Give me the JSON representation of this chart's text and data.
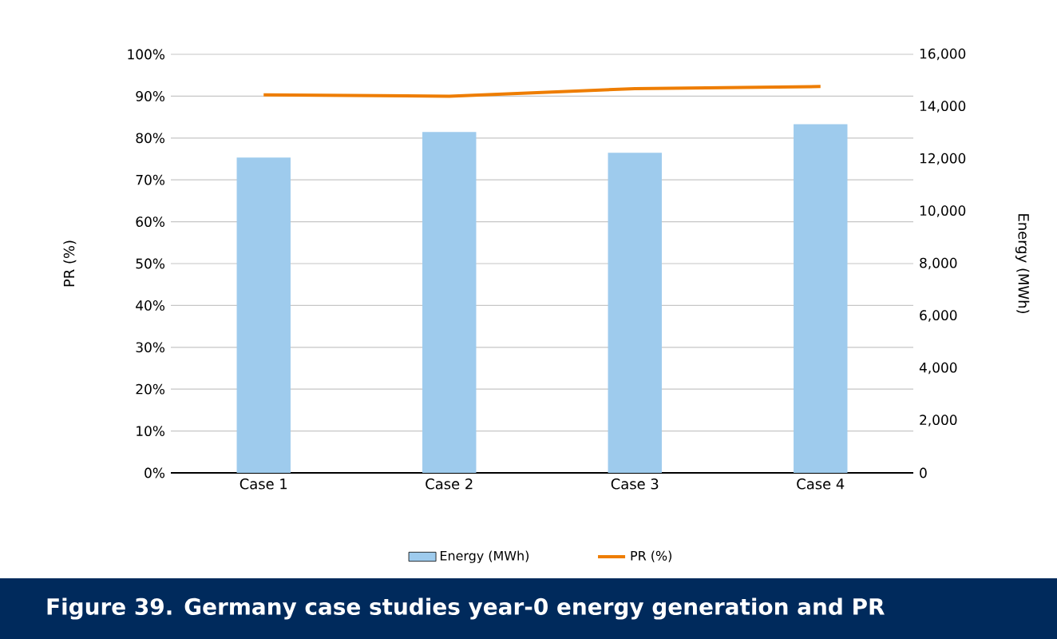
{
  "chart_data": {
    "type": "bar",
    "title": "Figure 39. Germany case studies year-0 energy generation and PR",
    "categories": [
      "Case 1",
      "Case 2",
      "Case 3",
      "Case 4"
    ],
    "series": [
      {
        "name": "Energy (MWh)",
        "axis": "y2",
        "color": "#9ecbed",
        "values": [
          12050,
          13030,
          12240,
          13330
        ]
      },
      {
        "name": "PR (%)",
        "type": "line",
        "color": "#ee7d00",
        "values": [
          90.3,
          90.0,
          91.8,
          92.3
        ]
      }
    ],
    "ylabel": "PR (%)",
    "y2label": "Energy (MWh)",
    "ylim": [
      0,
      100
    ],
    "yticks": [
      {
        "value": 0,
        "label": "0%"
      },
      {
        "value": 10,
        "label": "10%"
      },
      {
        "value": 20,
        "label": "20%"
      },
      {
        "value": 30,
        "label": "30%"
      },
      {
        "value": 40,
        "label": "40%"
      },
      {
        "value": 50,
        "label": "50%"
      },
      {
        "value": 60,
        "label": "60%"
      },
      {
        "value": 70,
        "label": "70%"
      },
      {
        "value": 80,
        "label": "80%"
      },
      {
        "value": 90,
        "label": "90%"
      },
      {
        "value": 100,
        "label": "100%"
      }
    ],
    "y2lim": [
      0,
      16000
    ],
    "y2ticks": [
      0,
      {
        "value": 2000,
        "label": "2,000"
      },
      {
        "value": 4000,
        "label": "4,000"
      },
      {
        "value": 6000,
        "label": "6,000"
      },
      {
        "value": 8000,
        "label": "8,000"
      },
      {
        "value": 10000,
        "label": "10,000"
      },
      {
        "value": 12000,
        "label": "12,000"
      },
      {
        "value": 14000,
        "label": "14,000"
      },
      {
        "value": 16000,
        "label": "16,000"
      }
    ],
    "grid": "y",
    "legend": "bottom"
  }
}
